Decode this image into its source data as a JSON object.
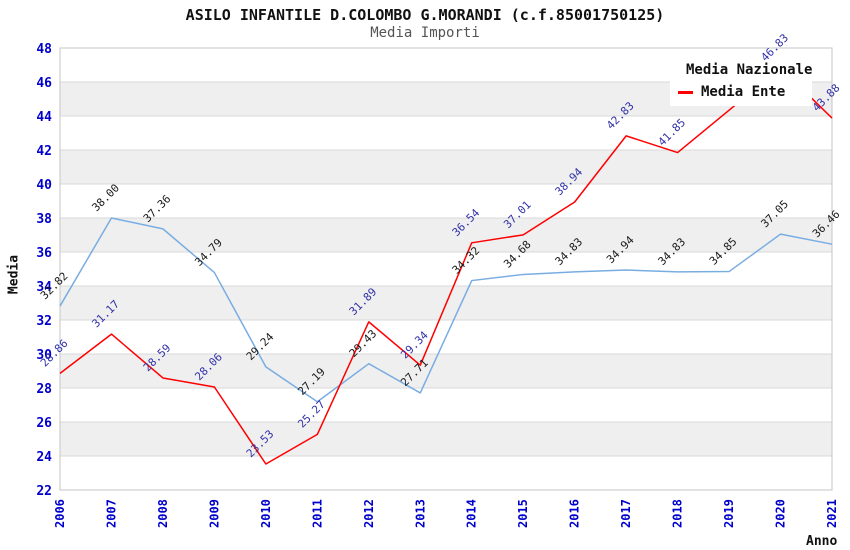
{
  "header": {
    "title": "ASILO INFANTILE D.COLOMBO G.MORANDI (c.f.85001750125)",
    "subtitle": "Media Importi"
  },
  "legend": {
    "items": [
      {
        "label": "Media Nazionale",
        "color": "#79ade2"
      },
      {
        "label": "Media Ente",
        "color": "#ff0000"
      }
    ]
  },
  "chart_data": {
    "type": "line",
    "title": "ASILO INFANTILE D.COLOMBO G.MORANDI (c.f.85001750125)",
    "subtitle": "Media Importi",
    "xlabel": "Anno",
    "ylabel": "Media",
    "x": [
      "2006",
      "2007",
      "2008",
      "2009",
      "2010",
      "2011",
      "2012",
      "2013",
      "2014",
      "2015",
      "2016",
      "2017",
      "2018",
      "2019",
      "2020",
      "2021"
    ],
    "ylim": [
      22,
      48
    ],
    "ytick_step": 2,
    "grid": true,
    "legend_position": "top-right",
    "series": [
      {
        "name": "Media Nazionale",
        "color": "#79ade2",
        "label_color": "#1a1a1a",
        "values": [
          32.82,
          38.0,
          37.36,
          34.79,
          29.24,
          27.19,
          29.43,
          27.71,
          34.32,
          34.68,
          34.83,
          34.94,
          34.83,
          34.85,
          37.05,
          36.46
        ]
      },
      {
        "name": "Media Ente",
        "color": "#ff0000",
        "label_color": "#3232a8",
        "values": [
          28.86,
          31.17,
          28.59,
          28.06,
          23.53,
          25.27,
          31.89,
          29.34,
          36.54,
          37.01,
          38.94,
          42.83,
          41.85,
          null,
          46.83,
          43.88
        ]
      }
    ],
    "style": {
      "band_color": "#efefef",
      "grid_color": "#d9d9d9",
      "border_color": "#c6c6c6",
      "tick_color": "#0000cc"
    }
  }
}
